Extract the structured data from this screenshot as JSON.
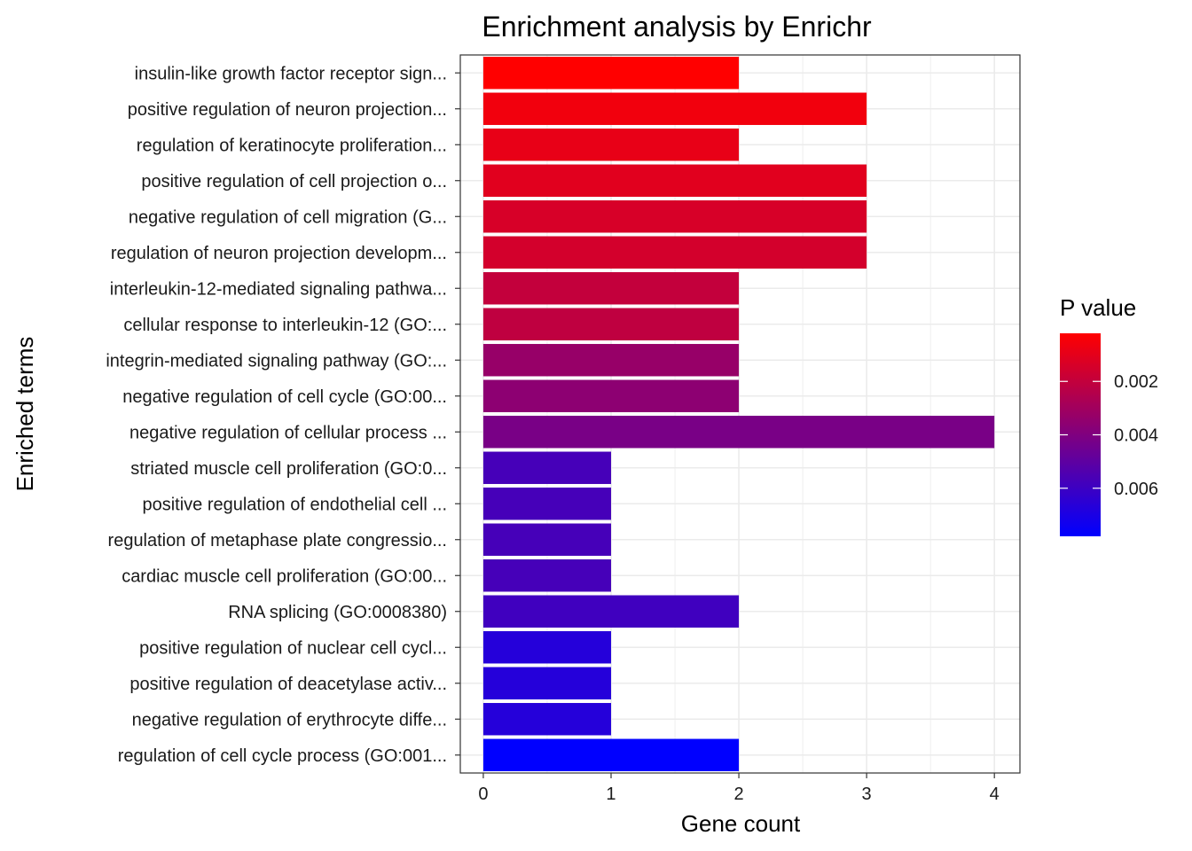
{
  "chart_data": {
    "type": "bar",
    "orientation": "horizontal",
    "title": "Enrichment analysis by Enrichr",
    "xlabel": "Gene count",
    "ylabel": "Enriched terms",
    "xlim": [
      0,
      4.2
    ],
    "x_ticks": [
      0,
      1,
      2,
      3,
      4
    ],
    "grid": true,
    "categories": [
      "insulin-like growth factor receptor sign...",
      "positive regulation of neuron projection...",
      "regulation of keratinocyte proliferation...",
      "positive regulation of cell projection o...",
      "negative regulation of cell migration (G...",
      "regulation of neuron projection developm...",
      "interleukin-12-mediated signaling pathwa...",
      "cellular response to interleukin-12 (GO:...",
      "integrin-mediated signaling pathway (GO:...",
      "negative regulation of cell cycle (GO:00...",
      "negative regulation of cellular process ...",
      "striated muscle cell proliferation (GO:0...",
      "positive regulation of endothelial cell ...",
      "regulation of metaphase plate congressio...",
      "cardiac muscle cell proliferation (GO:00...",
      "RNA splicing (GO:0008380)",
      "positive regulation of nuclear cell cycl...",
      "positive regulation of deacetylase activ...",
      "negative regulation of erythrocyte diffe...",
      "regulation of cell cycle process (GO:001..."
    ],
    "values": [
      2,
      3,
      2,
      3,
      3,
      3,
      2,
      2,
      2,
      2,
      4,
      1,
      1,
      1,
      1,
      2,
      1,
      1,
      1,
      2
    ],
    "p_values": [
      0.0002,
      0.0006,
      0.0009,
      0.0011,
      0.0014,
      0.0015,
      0.002,
      0.0021,
      0.0033,
      0.0036,
      0.0042,
      0.0057,
      0.0057,
      0.0057,
      0.0057,
      0.0059,
      0.0067,
      0.0067,
      0.0067,
      0.0078
    ],
    "legend": {
      "title": "P value",
      "position": "right",
      "ticks": [
        0.002,
        0.004,
        0.006
      ],
      "tick_labels": [
        "0.002",
        "0.004",
        "0.006"
      ],
      "range": [
        0.0002,
        0.0078
      ],
      "low_color": "#ff0000",
      "high_color": "#0000ff"
    }
  }
}
